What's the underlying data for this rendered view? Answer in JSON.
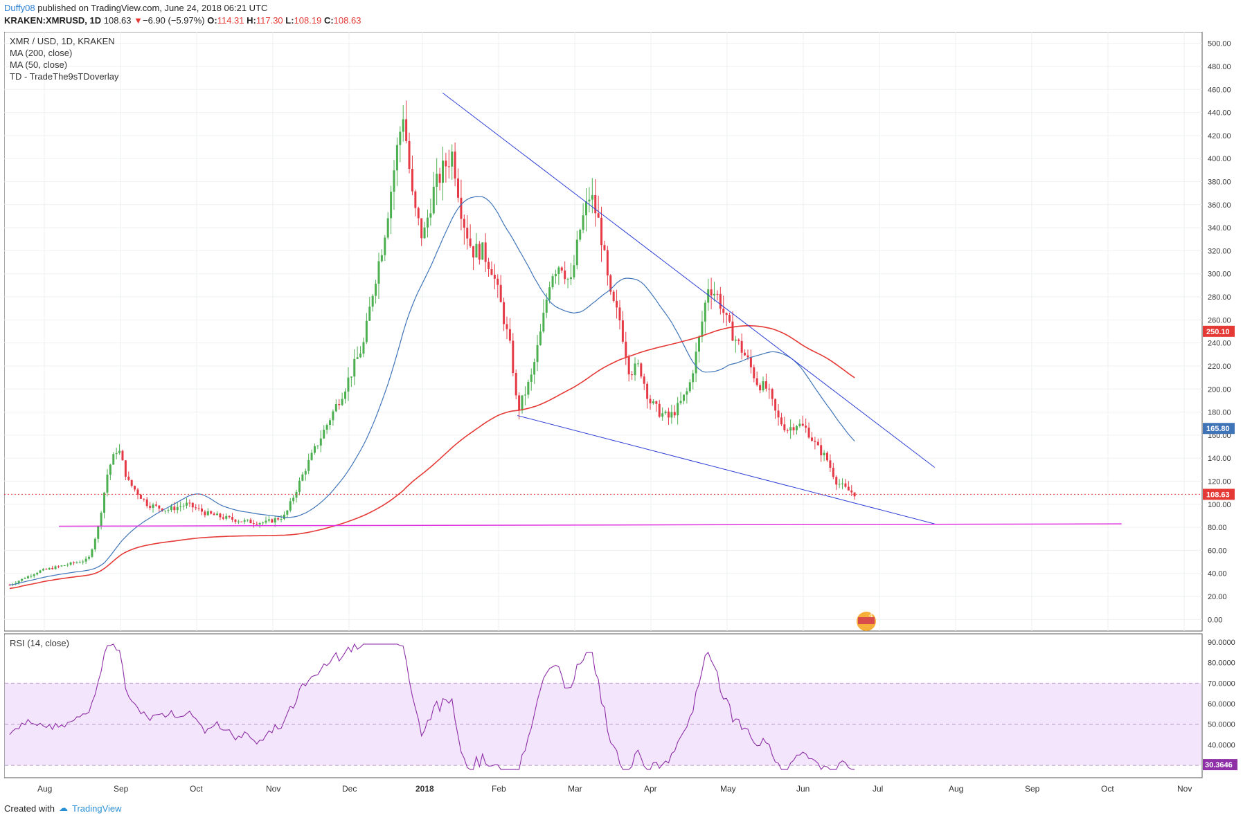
{
  "header": {
    "author": "Duffy08",
    "published": "published on TradingView.com, June 24, 2018 06:21 UTC",
    "symbol": "KRAKEN:XMRUSD, 1D",
    "last": "108.63",
    "change": "−6.90 (−5.97%)",
    "open_label": "O:",
    "open": "114.31",
    "high_label": "H:",
    "high": "117.30",
    "low_label": "L:",
    "low": "108.19",
    "close_label": "C:",
    "close": "108.63"
  },
  "legend": {
    "line1": "XMR / USD, 1D, KRAKEN",
    "line2": "MA (200, close)",
    "line3": "MA (50, close)",
    "line4": "TD - TradeThe9sTDoverlay"
  },
  "rsi": {
    "label": "RSI (14, close)",
    "value": "30.3646",
    "ticks": [
      "90.0000",
      "80.0000",
      "70.0000",
      "60.0000",
      "50.0000",
      "40.0000",
      "30.0000"
    ]
  },
  "price_labels": {
    "ma200": "250.10",
    "ma50": "165.80",
    "last": "108.63"
  },
  "colors": {
    "up": "#4caf50",
    "down": "#e53945",
    "ma200": "#e53935",
    "ma50": "#3f74b8",
    "trend": "#2f3fd6",
    "support": "#e033e0",
    "rsi": "#8e2fa8",
    "rsi_band": "#f3e5fb"
  },
  "footer": {
    "created": "Created with",
    "brand": "TradingView"
  },
  "chart_data": {
    "type": "candlestick",
    "title": "XMR / USD, 1D, KRAKEN",
    "ylim": [
      -10,
      510
    ],
    "y_ticks": [
      "500.00",
      "480.00",
      "460.00",
      "440.00",
      "420.00",
      "400.00",
      "380.00",
      "360.00",
      "340.00",
      "320.00",
      "300.00",
      "280.00",
      "260.00",
      "240.00",
      "220.00",
      "200.00",
      "180.00",
      "160.00",
      "140.00",
      "120.00",
      "100.00",
      "80.00",
      "60.00",
      "40.00",
      "20.00",
      "0.00"
    ],
    "x_ticks": [
      "Aug",
      "Sep",
      "Oct",
      "Nov",
      "Dec",
      "2018",
      "Feb",
      "Mar",
      "Apr",
      "May",
      "Jun",
      "Jul",
      "Aug",
      "Sep",
      "Oct",
      "Nov"
    ],
    "series": [
      {
        "name": "XMR/USD",
        "close_path": [
          [
            0,
            30
          ],
          [
            15,
            42
          ],
          [
            30,
            48
          ],
          [
            40,
            52
          ],
          [
            45,
            80
          ],
          [
            50,
            130
          ],
          [
            55,
            150
          ],
          [
            60,
            120
          ],
          [
            70,
            100
          ],
          [
            80,
            95
          ],
          [
            90,
            100
          ],
          [
            100,
            92
          ],
          [
            110,
            88
          ],
          [
            120,
            85
          ],
          [
            130,
            84
          ],
          [
            140,
            90
          ],
          [
            150,
            130
          ],
          [
            160,
            165
          ],
          [
            170,
            200
          ],
          [
            180,
            240
          ],
          [
            185,
            290
          ],
          [
            190,
            330
          ],
          [
            197,
            410
          ],
          [
            200,
            440
          ],
          [
            205,
            360
          ],
          [
            210,
            330
          ],
          [
            215,
            370
          ],
          [
            220,
            390
          ],
          [
            225,
            405
          ],
          [
            230,
            350
          ],
          [
            235,
            320
          ],
          [
            240,
            320
          ],
          [
            245,
            305
          ],
          [
            250,
            270
          ],
          [
            255,
            230
          ],
          [
            258,
            180
          ],
          [
            265,
            210
          ],
          [
            270,
            250
          ],
          [
            275,
            300
          ],
          [
            280,
            310
          ],
          [
            285,
            290
          ],
          [
            290,
            340
          ],
          [
            295,
            370
          ],
          [
            300,
            340
          ],
          [
            305,
            280
          ],
          [
            310,
            260
          ],
          [
            315,
            215
          ],
          [
            320,
            220
          ],
          [
            325,
            190
          ],
          [
            330,
            180
          ],
          [
            335,
            175
          ],
          [
            340,
            185
          ],
          [
            345,
            200
          ],
          [
            350,
            240
          ],
          [
            355,
            290
          ],
          [
            360,
            280
          ],
          [
            365,
            255
          ],
          [
            370,
            240
          ],
          [
            375,
            225
          ],
          [
            380,
            205
          ],
          [
            385,
            200
          ],
          [
            390,
            175
          ],
          [
            395,
            165
          ],
          [
            400,
            170
          ],
          [
            405,
            165
          ],
          [
            410,
            150
          ],
          [
            415,
            140
          ],
          [
            420,
            120
          ],
          [
            425,
            113
          ],
          [
            430,
            108.63
          ]
        ]
      },
      {
        "name": "MA (200, close)",
        "last": 250.1
      },
      {
        "name": "MA (50, close)",
        "last": 165.8
      }
    ],
    "support_level": 81,
    "last_price": 108.63
  }
}
